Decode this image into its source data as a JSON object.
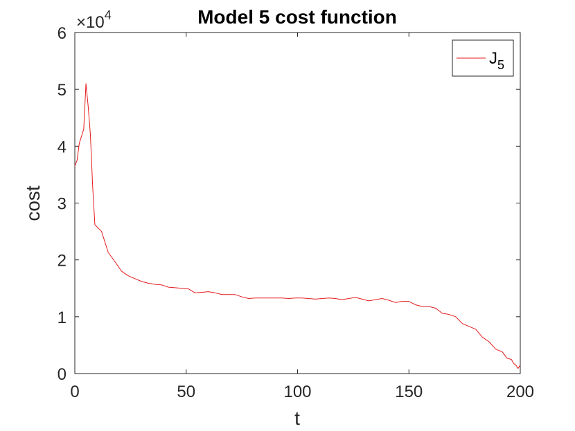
{
  "chart_data": {
    "type": "line",
    "title": "Model 5 cost function",
    "xlabel": "t",
    "ylabel": "cost",
    "xlim": [
      0,
      200
    ],
    "ylim": [
      0,
      60000
    ],
    "x_ticks": [
      0,
      50,
      100,
      150,
      200
    ],
    "x_tick_labels": [
      "0",
      "50",
      "100",
      "150",
      "200"
    ],
    "y_ticks": [
      0,
      10000,
      20000,
      30000,
      40000,
      50000,
      60000
    ],
    "y_tick_labels": [
      "0",
      "1",
      "2",
      "3",
      "4",
      "5",
      "6"
    ],
    "y_exponent_base": "×10",
    "y_exponent_power": "4",
    "grid": false,
    "legend_position": "top-right",
    "series": [
      {
        "name": "J",
        "name_subscript": "5",
        "color": "#e41a1c",
        "x": [
          0,
          1,
          2,
          4,
          5,
          6,
          7,
          8,
          9,
          12,
          15,
          18,
          21,
          24,
          27,
          30,
          33,
          36,
          39,
          42,
          45,
          48,
          51,
          54,
          57,
          60,
          63,
          66,
          69,
          72,
          75,
          78,
          81,
          84,
          87,
          90,
          93,
          96,
          99,
          102,
          105,
          108,
          111,
          114,
          117,
          120,
          123,
          126,
          129,
          132,
          135,
          138,
          141,
          144,
          147,
          150,
          153,
          156,
          159,
          162,
          165,
          168,
          171,
          174,
          177,
          180,
          183,
          186,
          189,
          192,
          194,
          196,
          197,
          198,
          199,
          200
        ],
        "y": [
          36500,
          37500,
          40500,
          43000,
          51000,
          47000,
          42000,
          33000,
          26200,
          25000,
          21300,
          19700,
          18000,
          17200,
          16700,
          16200,
          15900,
          15700,
          15600,
          15200,
          15100,
          15000,
          14900,
          14200,
          14300,
          14400,
          14200,
          13900,
          13900,
          13900,
          13500,
          13200,
          13300,
          13300,
          13300,
          13300,
          13300,
          13200,
          13300,
          13300,
          13200,
          13100,
          13200,
          13300,
          13200,
          13000,
          13200,
          13400,
          13100,
          12800,
          13000,
          13200,
          12900,
          12500,
          12700,
          12700,
          12100,
          11800,
          11800,
          11500,
          10600,
          10400,
          10000,
          8800,
          8300,
          7800,
          6400,
          5600,
          4300,
          3800,
          2700,
          2500,
          1800,
          1500,
          900,
          1500
        ]
      }
    ]
  }
}
